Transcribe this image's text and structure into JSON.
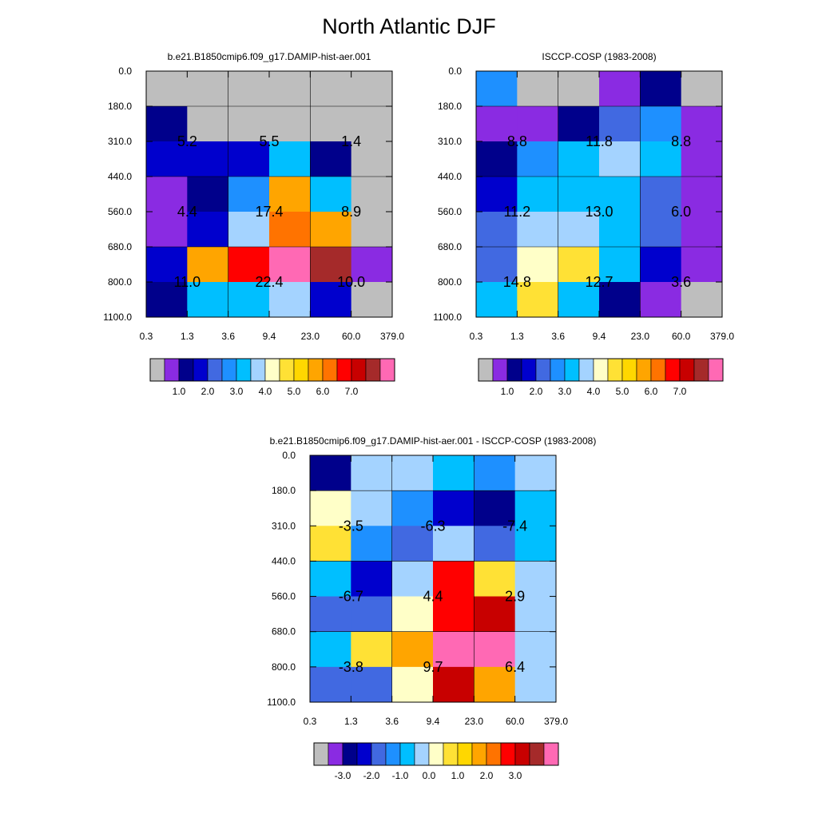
{
  "title": "North Atlantic DJF",
  "palette": [
    "#BEBEBE",
    "#8A2BE2",
    "#00008B",
    "#0000CD",
    "#4169E1",
    "#1E90FF",
    "#00BFFF",
    "#A4D3FF",
    "#FFFFC8",
    "#FFE135",
    "#FFD700",
    "#FFA500",
    "#FF7300",
    "#FF0000",
    "#C80000",
    "#A52A2A",
    "#FF69B4"
  ],
  "chart_data": [
    {
      "type": "heatmap",
      "title": "b.e21.B1850cmip6.f09_g17.DAMIP-hist-aer.001",
      "x_ticks": [
        "0.3",
        "1.3",
        "3.6",
        "9.4",
        "23.0",
        "60.0",
        "379.0"
      ],
      "y_ticks": [
        "0.0",
        "180.0",
        "310.0",
        "440.0",
        "560.0",
        "680.0",
        "800.0",
        "1100.0"
      ],
      "grid_color_index": [
        [
          0,
          0,
          0,
          0,
          0,
          0
        ],
        [
          2,
          0,
          0,
          0,
          0,
          0
        ],
        [
          3,
          3,
          3,
          6,
          2,
          0
        ],
        [
          1,
          2,
          5,
          11,
          6,
          0
        ],
        [
          1,
          3,
          7,
          12,
          11,
          0
        ],
        [
          3,
          11,
          13,
          16,
          15,
          1
        ],
        [
          2,
          6,
          6,
          7,
          3,
          0
        ]
      ],
      "annotations": [
        {
          "row_block": 0,
          "col_block": 0,
          "text": "5.2"
        },
        {
          "row_block": 0,
          "col_block": 1,
          "text": "5.5"
        },
        {
          "row_block": 0,
          "col_block": 2,
          "text": "1.4"
        },
        {
          "row_block": 1,
          "col_block": 0,
          "text": "4.4"
        },
        {
          "row_block": 1,
          "col_block": 1,
          "text": "17.4"
        },
        {
          "row_block": 1,
          "col_block": 2,
          "text": "8.9"
        },
        {
          "row_block": 2,
          "col_block": 0,
          "text": "11.0"
        },
        {
          "row_block": 2,
          "col_block": 1,
          "text": "22.4"
        },
        {
          "row_block": 2,
          "col_block": 2,
          "text": "10.0"
        }
      ],
      "colorbar": {
        "labels": [
          "1.0",
          "2.0",
          "3.0",
          "4.0",
          "5.0",
          "6.0",
          "7.0"
        ]
      }
    },
    {
      "type": "heatmap",
      "title": "ISCCP-COSP (1983-2008)",
      "x_ticks": [
        "0.3",
        "1.3",
        "3.6",
        "9.4",
        "23.0",
        "60.0",
        "379.0"
      ],
      "y_ticks": [
        "0.0",
        "180.0",
        "310.0",
        "440.0",
        "560.0",
        "680.0",
        "800.0",
        "1100.0"
      ],
      "grid_color_index": [
        [
          5,
          0,
          0,
          1,
          2,
          0
        ],
        [
          1,
          1,
          2,
          4,
          5,
          1
        ],
        [
          2,
          5,
          6,
          7,
          6,
          1
        ],
        [
          3,
          6,
          6,
          6,
          4,
          1
        ],
        [
          4,
          7,
          7,
          6,
          4,
          1
        ],
        [
          4,
          8,
          9,
          6,
          3,
          1
        ],
        [
          6,
          9,
          6,
          2,
          1,
          0
        ]
      ],
      "annotations": [
        {
          "row_block": 0,
          "col_block": 0,
          "text": "8.8"
        },
        {
          "row_block": 0,
          "col_block": 1,
          "text": "11.8"
        },
        {
          "row_block": 0,
          "col_block": 2,
          "text": "8.8"
        },
        {
          "row_block": 1,
          "col_block": 0,
          "text": "11.2"
        },
        {
          "row_block": 1,
          "col_block": 1,
          "text": "13.0"
        },
        {
          "row_block": 1,
          "col_block": 2,
          "text": "6.0"
        },
        {
          "row_block": 2,
          "col_block": 0,
          "text": "14.8"
        },
        {
          "row_block": 2,
          "col_block": 1,
          "text": "12.7"
        },
        {
          "row_block": 2,
          "col_block": 2,
          "text": "3.6"
        }
      ],
      "colorbar": {
        "labels": [
          "1.0",
          "2.0",
          "3.0",
          "4.0",
          "5.0",
          "6.0",
          "7.0"
        ]
      }
    },
    {
      "type": "heatmap",
      "title": "b.e21.B1850cmip6.f09_g17.DAMIP-hist-aer.001 - ISCCP-COSP (1983-2008)",
      "x_ticks": [
        "0.3",
        "1.3",
        "3.6",
        "9.4",
        "23.0",
        "60.0",
        "379.0"
      ],
      "y_ticks": [
        "0.0",
        "180.0",
        "310.0",
        "440.0",
        "560.0",
        "680.0",
        "800.0",
        "1100.0"
      ],
      "grid_color_index": [
        [
          2,
          7,
          7,
          6,
          5,
          7
        ],
        [
          8,
          7,
          5,
          3,
          2,
          6
        ],
        [
          9,
          5,
          4,
          7,
          4,
          6
        ],
        [
          6,
          3,
          7,
          13,
          9,
          7
        ],
        [
          4,
          4,
          8,
          13,
          14,
          7
        ],
        [
          6,
          9,
          11,
          16,
          16,
          7
        ],
        [
          4,
          4,
          8,
          14,
          11,
          7
        ]
      ],
      "annotations": [
        {
          "row_block": 0,
          "col_block": 0,
          "text": "-3.5"
        },
        {
          "row_block": 0,
          "col_block": 1,
          "text": "-6.3"
        },
        {
          "row_block": 0,
          "col_block": 2,
          "text": "-7.4"
        },
        {
          "row_block": 1,
          "col_block": 0,
          "text": "-6.7"
        },
        {
          "row_block": 1,
          "col_block": 1,
          "text": "4.4"
        },
        {
          "row_block": 1,
          "col_block": 2,
          "text": "2.9"
        },
        {
          "row_block": 2,
          "col_block": 0,
          "text": "-3.8"
        },
        {
          "row_block": 2,
          "col_block": 1,
          "text": "9.7"
        },
        {
          "row_block": 2,
          "col_block": 2,
          "text": "6.4"
        }
      ],
      "colorbar": {
        "labels": [
          "-3.0",
          "-2.0",
          "-1.0",
          "0.0",
          "1.0",
          "2.0",
          "3.0"
        ]
      }
    }
  ]
}
